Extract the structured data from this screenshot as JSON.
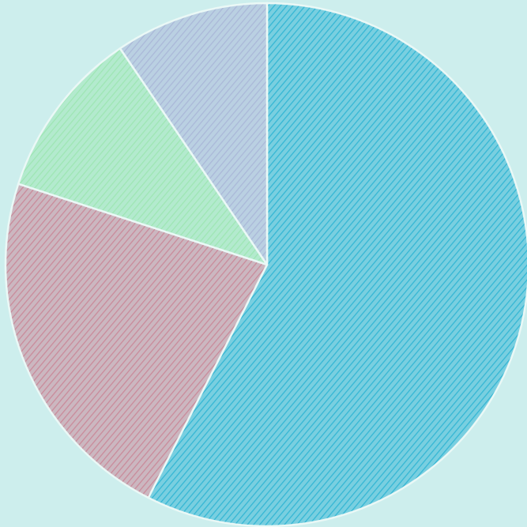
{
  "chart_data": {
    "type": "pie",
    "start_angle_deg": 0,
    "direction": "clockwise",
    "labels_shown": false,
    "legend": "none",
    "slices": [
      {
        "value": 57.5,
        "color": "#34b6d4"
      },
      {
        "value": 22.5,
        "color": "#c98a9a"
      },
      {
        "value": 10.5,
        "color": "#9ee6b4"
      },
      {
        "value": 9.5,
        "color": "#aab8d8"
      }
    ]
  },
  "style": {
    "background": "#cdeeed",
    "slice_edge": "#eaf8f6",
    "hatch_line": "#1f5d78"
  }
}
